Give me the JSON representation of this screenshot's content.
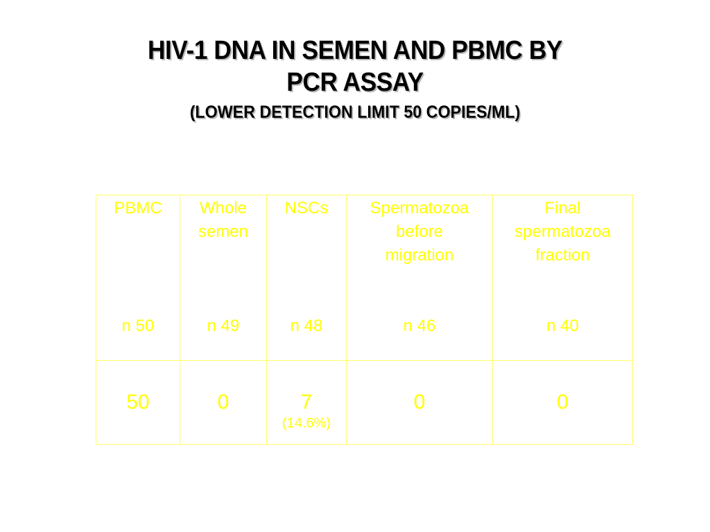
{
  "slide": {
    "title_line1": "HIV-1 DNA IN SEMEN AND PBMC BY",
    "title_line2": "PCR ASSAY",
    "subtitle": "(LOWER DETECTION LIMIT 50 COPIES/ML)"
  },
  "table": {
    "columns": [
      {
        "header": [
          "PBMC"
        ],
        "n": "n 50",
        "value": "50",
        "pct": ""
      },
      {
        "header": [
          "Whole",
          "semen"
        ],
        "n": "n 49",
        "value": "0",
        "pct": ""
      },
      {
        "header": [
          "NSCs"
        ],
        "n": "n 48",
        "value": "7",
        "pct": "(14.6%)"
      },
      {
        "header": [
          "Spermatozoa",
          "before",
          "migration"
        ],
        "n": "n 46",
        "value": "0",
        "pct": ""
      },
      {
        "header": [
          "Final",
          "spermatozoa",
          "fraction"
        ],
        "n": "n 40",
        "value": "0",
        "pct": ""
      }
    ]
  },
  "colors": {
    "background": "#ffffff",
    "title": "#000000",
    "table_text": "#ffff00",
    "table_border": "#ffff66"
  }
}
